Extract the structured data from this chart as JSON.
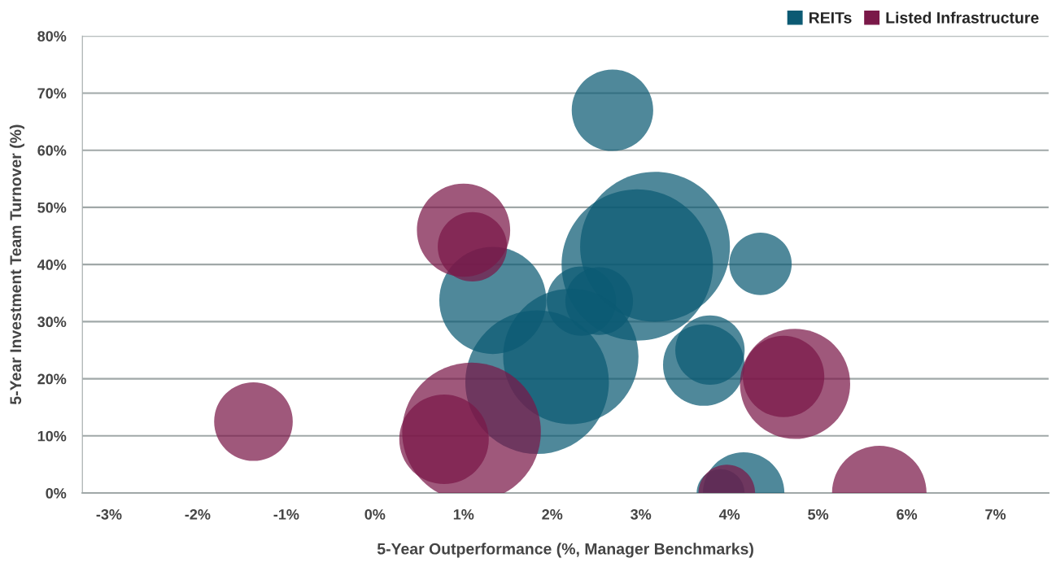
{
  "chart_data": {
    "type": "bubble",
    "xlabel": "5-Year Outperformance (%, Manager Benchmarks)",
    "ylabel": "5-Year Investment Team Turnover (%)",
    "xlim": [
      -3.3,
      7.6
    ],
    "ylim": [
      0,
      80
    ],
    "xticks": [
      {
        "value": -3,
        "label": "-3%"
      },
      {
        "value": -2,
        "label": "-2%"
      },
      {
        "value": -1,
        "label": "-1%"
      },
      {
        "value": 0,
        "label": "0%"
      },
      {
        "value": 1,
        "label": "1%"
      },
      {
        "value": 2,
        "label": "2%"
      },
      {
        "value": 3,
        "label": "3%"
      },
      {
        "value": 4,
        "label": "4%"
      },
      {
        "value": 5,
        "label": "5%"
      },
      {
        "value": 6,
        "label": "6%"
      },
      {
        "value": 7,
        "label": "7%"
      }
    ],
    "yticks": [
      {
        "value": 0,
        "label": "0%"
      },
      {
        "value": 10,
        "label": "10%"
      },
      {
        "value": 20,
        "label": "20%"
      },
      {
        "value": 30,
        "label": "30%"
      },
      {
        "value": 40,
        "label": "40%"
      },
      {
        "value": 50,
        "label": "50%"
      },
      {
        "value": 60,
        "label": "60%"
      },
      {
        "value": 70,
        "label": "70%"
      },
      {
        "value": 80,
        "label": "80%"
      }
    ],
    "grid": "y",
    "legend": "top right",
    "series": [
      {
        "name": "REITs",
        "color": "#0b5a73",
        "x": [
          2.68,
          3.16,
          2.96,
          1.33,
          2.33,
          2.53,
          4.35,
          3.78,
          3.71,
          1.83,
          2.21,
          4.16,
          3.9
        ],
        "values": [
          67,
          43.1,
          39.9,
          33.7,
          33.6,
          33.6,
          40.1,
          25,
          22.4,
          19.4,
          23.9,
          0,
          0
        ],
        "sizes": [
          0.29,
          0.98,
          1,
          0.5,
          0.21,
          0.2,
          0.17,
          0.21,
          0.29,
          0.9,
          0.8,
          0.29,
          0.1
        ]
      },
      {
        "name": "Listed Infrastructure",
        "color": "#7a1848",
        "x": [
          -1.37,
          0.78,
          1.09,
          1.0,
          1.1,
          4.74,
          4.61,
          3.97,
          5.69
        ],
        "values": [
          12.5,
          9.4,
          10.7,
          46,
          43.1,
          19.1,
          20.4,
          0,
          0
        ],
        "sizes": [
          0.27,
          0.35,
          0.84,
          0.38,
          0.21,
          0.53,
          0.29,
          0.14,
          0.39
        ]
      }
    ]
  }
}
